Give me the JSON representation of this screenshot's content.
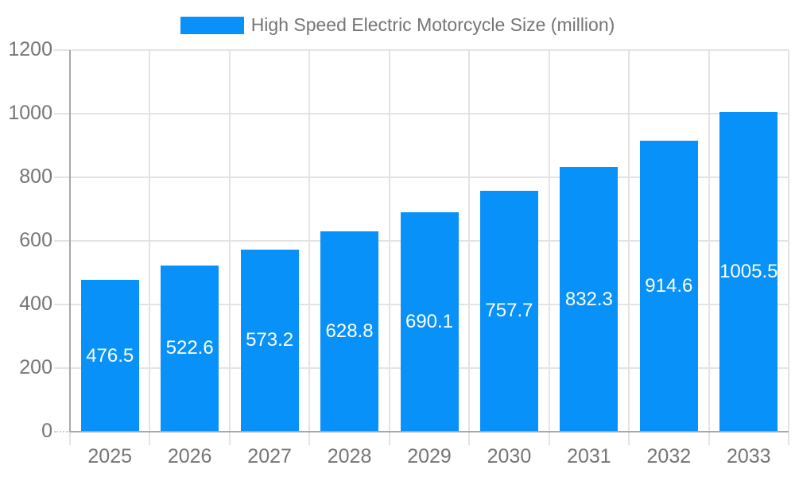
{
  "chart_data": {
    "type": "bar",
    "title": "High Speed Electric Motorcycle Size (million)",
    "legend": {
      "label": "High Speed Electric Motorcycle Size (million)",
      "position": "top-center"
    },
    "categories": [
      "2025",
      "2026",
      "2027",
      "2028",
      "2029",
      "2030",
      "2031",
      "2032",
      "2033"
    ],
    "values": [
      476.5,
      522.6,
      573.2,
      628.8,
      690.1,
      757.7,
      832.3,
      914.6,
      1005.5
    ],
    "xlabel": "",
    "ylabel": "",
    "ylim": [
      0,
      1200
    ],
    "yticks": [
      0,
      200,
      400,
      600,
      800,
      1000,
      1200
    ],
    "grid": true,
    "bar_labels_inside": true,
    "colors": {
      "bar": "#0891f8",
      "grid": "#e3e3e3",
      "axis": "#a8a8a8",
      "tick_text": "#757575",
      "bar_label_text": "#ffffff",
      "background": "#ffffff"
    }
  }
}
